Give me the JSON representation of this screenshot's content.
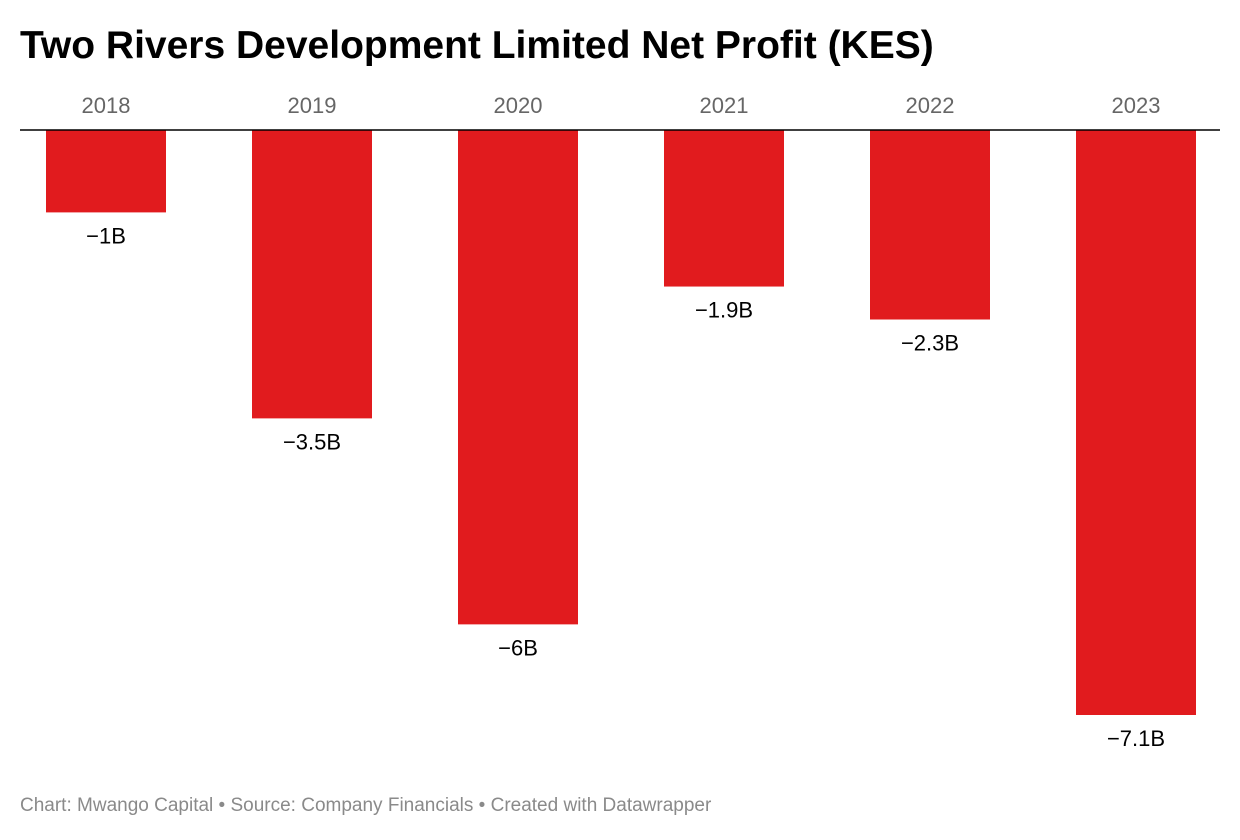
{
  "chart_data": {
    "type": "bar",
    "title": "Two Rivers Development Limited Net Profit (KES)",
    "categories": [
      "2018",
      "2019",
      "2020",
      "2021",
      "2022",
      "2023"
    ],
    "values": [
      -1000000000,
      -3500000000,
      -6000000000,
      -1900000000,
      -2300000000,
      -7100000000
    ],
    "value_labels": [
      "−1B",
      "−3.5B",
      "−6B",
      "−1.9B",
      "−2.3B",
      "−7.1B"
    ],
    "xlabel": "",
    "ylabel": "",
    "ylim": [
      -7100000000,
      0
    ],
    "grid": false,
    "legend": "none",
    "category_axis_position": "top",
    "bar_color": "#e11b1e"
  },
  "footer": {
    "credit": "Chart: Mwango Capital",
    "separator_1": " • ",
    "source": "Source: Company Financials",
    "separator_2": " • ",
    "tool": "Created with Datawrapper"
  },
  "colors": {
    "bar": "#e11b1e",
    "baseline": "#000000",
    "category_text": "#666666",
    "value_text": "#000000",
    "footer_text": "#8a8a8a"
  }
}
